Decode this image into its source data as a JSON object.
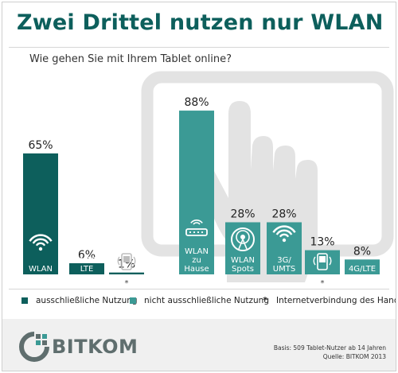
{
  "title": "Zwei Drittel nutzen nur WLAN",
  "subtitle": "Wie gehen Sie mit Ihrem Tablet online?",
  "colors": {
    "exclusive": "#0d5f5c",
    "non_exclusive": "#3b9a95",
    "background_tablet": "#e3e3e3",
    "title": "#0d5f5c"
  },
  "chart_data": {
    "type": "bar",
    "groups": [
      {
        "series": "ausschließliche Nutzung",
        "bars": [
          {
            "category": "WLAN",
            "value": 65,
            "value_label": "65%",
            "icon": "wifi-icon"
          },
          {
            "category": "UMTS/ LTE",
            "value": 6,
            "value_label": "6%",
            "icon": ""
          },
          {
            "category": "",
            "value": 1,
            "value_label": "1%",
            "icon": "phone-tethering-icon",
            "footnote": "*"
          }
        ]
      },
      {
        "series": "nicht ausschließliche Nutzung",
        "bars": [
          {
            "category": "WLAN zu Hause",
            "value": 88,
            "value_label": "88%",
            "icon": "router-icon"
          },
          {
            "category": "WLAN Spots",
            "value": 28,
            "value_label": "28%",
            "icon": "hotspot-icon"
          },
          {
            "category": "3G/ UMTS",
            "value": 28,
            "value_label": "28%",
            "icon": "wifi-icon"
          },
          {
            "category": "",
            "value": 13,
            "value_label": "13%",
            "icon": "phone-tethering-icon",
            "footnote": "*"
          },
          {
            "category": "4G/LTE",
            "value": 8,
            "value_label": "8%",
            "icon": ""
          }
        ]
      }
    ],
    "ylim": [
      0,
      100
    ]
  },
  "legend": {
    "exclusive": "ausschließliche Nutzung",
    "non_exclusive": "nicht ausschließliche Nutzung",
    "footnote_marker": "*",
    "footnote": "Internetverbindung des Handys"
  },
  "logo": {
    "text": "BITKOM"
  },
  "source": {
    "basis": "Basis: 509 Tablet-Nutzer ab 14 Jahren",
    "quelle": "Quelle: BITKOM 2013"
  }
}
